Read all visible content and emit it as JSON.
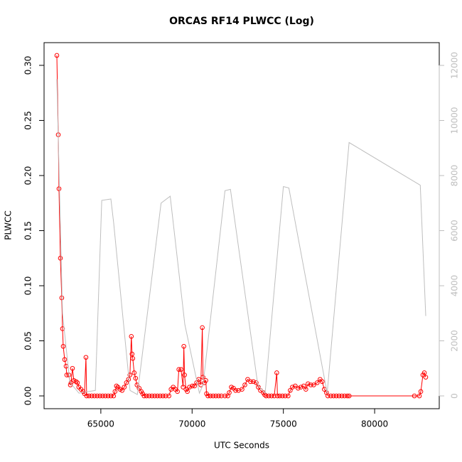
{
  "chart_data": {
    "type": "line",
    "title": "ORCAS RF14 PLWCC (Log)",
    "xlabel": "UTC Seconds",
    "ylabel": "PLWCC",
    "xlim": [
      61890,
      83540
    ],
    "ylim": [
      -0.0116,
      0.3206
    ],
    "y2lim": [
      -464,
      12826
    ],
    "xticks": [
      65000,
      70000,
      75000,
      80000
    ],
    "yticks": [
      {
        "value": 0,
        "label": "0.00"
      },
      {
        "value": 0.05,
        "label": "0.05"
      },
      {
        "value": 0.1,
        "label": "0.10"
      },
      {
        "value": 0.15,
        "label": "0.15"
      },
      {
        "value": 0.2,
        "label": "0.20"
      },
      {
        "value": 0.25,
        "label": "0.25"
      },
      {
        "value": 0.3,
        "label": "0.30"
      }
    ],
    "y2ticks": [
      0,
      2000,
      4000,
      6000,
      8000,
      10000,
      12000
    ],
    "series": [
      {
        "color": "#ff0000",
        "markers": true,
        "x": [
          62590,
          62668,
          62707,
          62785,
          62860,
          62900,
          62940,
          63018,
          63096,
          63135,
          63250,
          63330,
          63368,
          63445,
          63523,
          63640,
          63717,
          63795,
          63911,
          64028,
          64106,
          64184,
          64223,
          64350,
          64500,
          64650,
          64800,
          64950,
          65100,
          65250,
          65400,
          65550,
          65700,
          65777,
          65855,
          65933,
          66050,
          66166,
          66283,
          66400,
          66516,
          66594,
          66671,
          66710,
          66750,
          66827,
          66905,
          66982,
          67099,
          67215,
          67293,
          67370,
          67500,
          67650,
          67800,
          67950,
          68100,
          68250,
          68400,
          68550,
          68730,
          68848,
          68964,
          69080,
          69197,
          69275,
          69392,
          69508,
          69547,
          69586,
          69664,
          69741,
          69858,
          70013,
          70130,
          70247,
          70364,
          70480,
          70558,
          70597,
          70675,
          70752,
          70791,
          70869,
          71000,
          71150,
          71300,
          71450,
          71600,
          71800,
          71957,
          72035,
          72151,
          72268,
          72384,
          72540,
          72734,
          72890,
          73045,
          73200,
          73356,
          73511,
          73628,
          73745,
          73900,
          73978,
          74056,
          74200,
          74350,
          74500,
          74638,
          74677,
          74800,
          74950,
          75100,
          75260,
          75377,
          75494,
          75650,
          75805,
          75960,
          76116,
          76232,
          76349,
          76504,
          76660,
          76854,
          77010,
          77126,
          77243,
          77360,
          77437,
          77600,
          77750,
          77900,
          78050,
          78200,
          78350,
          78500,
          78603,
          82178,
          82450,
          82530,
          82645,
          82723,
          82800
        ],
        "values": [
          0.309,
          0.237,
          0.188,
          0.125,
          0.089,
          0.061,
          0.045,
          0.033,
          0.027,
          0.019,
          0.019,
          0.01,
          0.012,
          0.025,
          0.014,
          0.013,
          0.012,
          0.008,
          0.006,
          0.004,
          0.002,
          0.035,
          0,
          0,
          0,
          0,
          0,
          0,
          0,
          0,
          0,
          0,
          0,
          0.004,
          0.009,
          0.008,
          0.006,
          0.005,
          0.008,
          0.012,
          0.015,
          0.019,
          0.054,
          0.038,
          0.034,
          0.021,
          0.016,
          0.01,
          0.007,
          0.004,
          0.002,
          0,
          0,
          0,
          0,
          0,
          0,
          0,
          0,
          0,
          0,
          0.006,
          0.008,
          0.006,
          0.004,
          0.024,
          0.024,
          0.008,
          0.045,
          0.019,
          0.006,
          0.004,
          0.008,
          0.009,
          0.009,
          0.012,
          0.015,
          0.01,
          0.062,
          0.017,
          0.012,
          0.014,
          0.002,
          0,
          0,
          0,
          0,
          0,
          0,
          0,
          0,
          0.003,
          0.008,
          0.007,
          0.005,
          0.005,
          0.006,
          0.01,
          0.015,
          0.013,
          0.013,
          0.012,
          0.008,
          0.005,
          0.003,
          0.001,
          0,
          0,
          0,
          0,
          0.021,
          0,
          0,
          0,
          0,
          0,
          0.005,
          0.008,
          0.009,
          0.007,
          0.008,
          0.009,
          0.006,
          0.011,
          0.01,
          0.01,
          0.012,
          0.015,
          0.013,
          0.006,
          0.003,
          0,
          0,
          0,
          0,
          0,
          0,
          0,
          0,
          0,
          0,
          0,
          0.004,
          0.019,
          0.021,
          0.017
        ]
      },
      {
        "color": "#bebebe",
        "axis": "y2",
        "markers": false,
        "x": [
          62590,
          62900,
          63300,
          63800,
          64700,
          65050,
          65550,
          65700,
          66600,
          67000,
          68300,
          68800,
          69600,
          70400,
          70600,
          71800,
          72100,
          73600,
          74000,
          75000,
          75300,
          77400,
          78600,
          82500,
          82800
        ],
        "values": [
          11500,
          3000,
          500,
          100,
          200,
          7100,
          7150,
          6300,
          200,
          50,
          7000,
          7250,
          2600,
          100,
          400,
          7450,
          7500,
          400,
          100,
          7600,
          7550,
          100,
          9200,
          7650,
          2900
        ]
      }
    ]
  }
}
